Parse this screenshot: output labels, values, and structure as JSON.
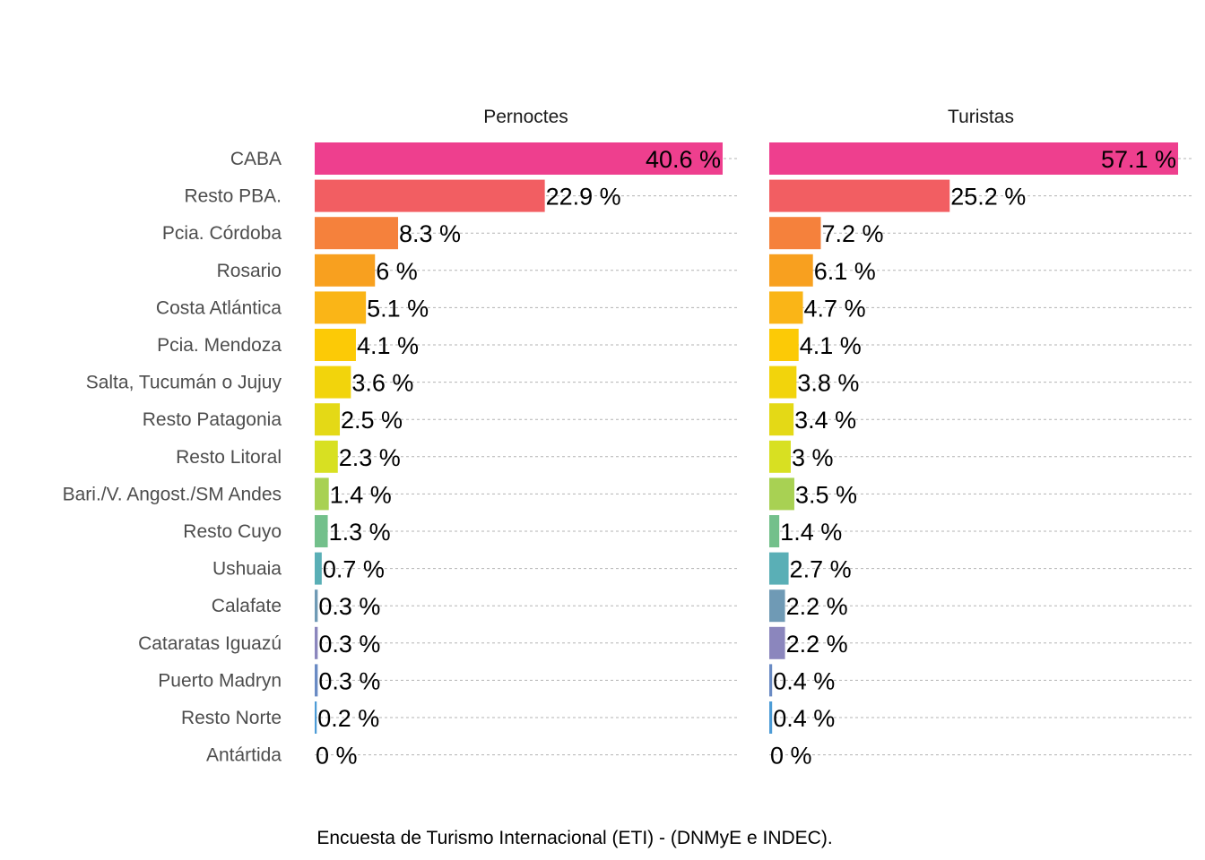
{
  "chart_data": {
    "type": "bar",
    "orientation": "horizontal",
    "categories": [
      "CABA",
      "Resto PBA.",
      "Pcia. Córdoba",
      "Rosario",
      "Costa Atlántica",
      "Pcia. Mendoza",
      "Salta, Tucumán o Jujuy",
      "Resto Patagonia",
      "Resto Litoral",
      "Bari./V. Angost./SM Andes",
      "Resto Cuyo",
      "Ushuaia",
      "Calafate",
      "Cataratas Iguazú",
      "Puerto Madryn",
      "Resto Norte",
      "Antártida"
    ],
    "colors": [
      "#ee3f8e",
      "#f25e62",
      "#f5813c",
      "#f8a01f",
      "#fab517",
      "#fcca06",
      "#f2d40c",
      "#e4d916",
      "#d8e022",
      "#a8d153",
      "#73c08b",
      "#5aafb6",
      "#6f9ab5",
      "#8b86bd",
      "#6a8bc4",
      "#4d9cd6",
      "#4a7fc1"
    ],
    "series": [
      {
        "name": "Pernoctes",
        "values": [
          40.6,
          22.9,
          8.3,
          6,
          5.1,
          4.1,
          3.6,
          2.5,
          2.3,
          1.4,
          1.3,
          0.7,
          0.3,
          0.3,
          0.3,
          0.2,
          0
        ],
        "labels": [
          "40.6 %",
          "22.9 %",
          "8.3 %",
          "6 %",
          "5.1 %",
          "4.1 %",
          "3.6 %",
          "2.5 %",
          "2.3 %",
          "1.4 %",
          "1.3 %",
          "0.7 %",
          "0.3 %",
          "0.3 %",
          "0.3 %",
          "0.2 %",
          "0 %"
        ]
      },
      {
        "name": "Turistas",
        "values": [
          57.1,
          25.2,
          7.2,
          6.1,
          4.7,
          4.1,
          3.8,
          3.4,
          3,
          3.5,
          1.4,
          2.7,
          2.2,
          2.2,
          0.4,
          0.4,
          0
        ],
        "labels": [
          "57.1 %",
          "25.2 %",
          "7.2 %",
          "6.1 %",
          "4.7 %",
          "4.1 %",
          "3.8 %",
          "3.4 %",
          "3 %",
          "3.5 %",
          "1.4 %",
          "2.7 %",
          "2.2 %",
          "2.2 %",
          "0.4 %",
          "0.4 %",
          "0 %"
        ]
      }
    ],
    "xlim_by_facet": [
      [
        0,
        40.6
      ],
      [
        0,
        57.1
      ]
    ],
    "grid": "horizontal dashed",
    "legend": "none",
    "caption": "Encuesta de Turismo Internacional (ETI) - (DNMyE e INDEC)."
  }
}
